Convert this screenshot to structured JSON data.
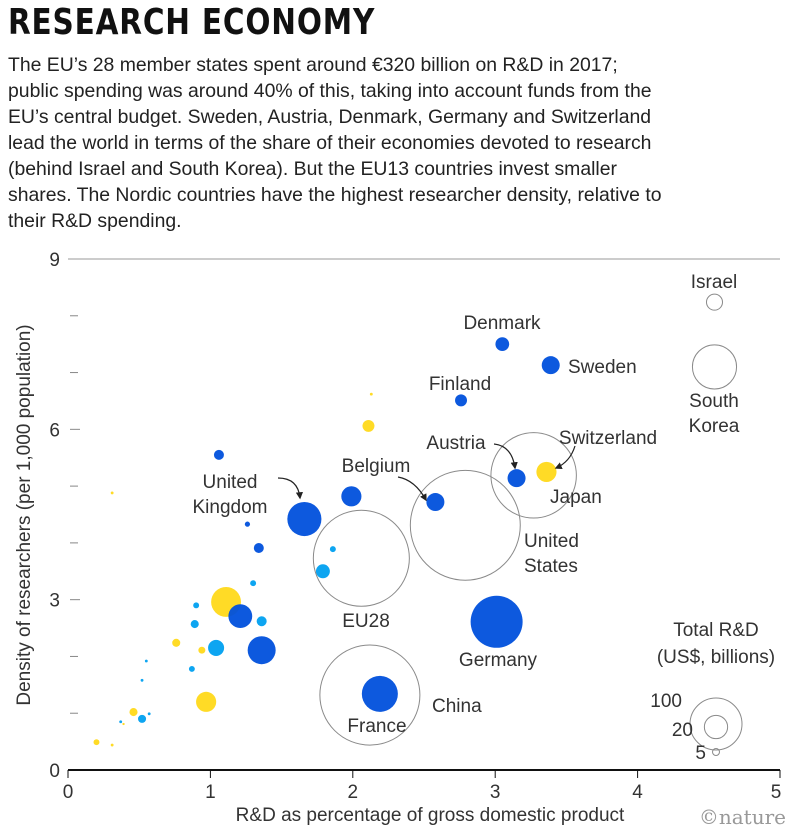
{
  "title": "RESEARCH ECONOMY",
  "intro_lines": [
    "The EU’s 28 member states spent around €320 billion on R&D in 2017;",
    "public spending was around 40% of this, taking into account funds from the",
    "EU’s central budget. Sweden, Austria, Denmark, Germany and Switzerland",
    "lead the world in terms of the share of their economies devoted to research",
    "(behind Israel and South Korea). But the EU13 countries invest smaller",
    "shares. The Nordic countries have the highest researcher density, relative to",
    "their R&D spending."
  ],
  "credit": "©nature",
  "colors": {
    "dark_blue": "#0050dc",
    "light_blue": "#00a0f0",
    "yellow": "#ffd91a",
    "hollow": "#8a8a8a"
  },
  "chart_data": {
    "type": "scatter",
    "xlabel": "R&D as percentage of gross domestic product",
    "ylabel": "Density of researchers (per 1,000 population)",
    "xlim": [
      0,
      5
    ],
    "ylim": [
      0,
      9
    ],
    "x_ticks": [
      "0",
      "1",
      "2",
      "3",
      "4",
      "5"
    ],
    "y_ticks": [
      "0",
      "3",
      "6",
      "9"
    ],
    "size_legend": {
      "title_lines": [
        "Total R&D",
        "(US$, billions)"
      ],
      "values": [
        100,
        20,
        5
      ],
      "labels": [
        "100",
        "20",
        "5"
      ]
    },
    "points": [
      {
        "label": [
          "Israel"
        ],
        "x": 4.54,
        "y": 8.24,
        "size": 9.5,
        "group": "hollow"
      },
      {
        "label": [
          "South",
          "Korea"
        ],
        "x": 4.54,
        "y": 7.1,
        "size": 72,
        "group": "hollow"
      },
      {
        "label": [
          "Denmark"
        ],
        "x": 3.05,
        "y": 7.5,
        "size": 7,
        "group": "dark_blue"
      },
      {
        "label": [
          "Sweden"
        ],
        "x": 3.39,
        "y": 7.13,
        "size": 12,
        "group": "dark_blue"
      },
      {
        "label": [
          "Finland"
        ],
        "x": 2.76,
        "y": 6.51,
        "size": 5.3,
        "group": "dark_blue"
      },
      {
        "label": [
          "Japan"
        ],
        "x": 3.27,
        "y": 5.19,
        "size": 270,
        "group": "hollow"
      },
      {
        "label": [
          "Austria"
        ],
        "x": 3.15,
        "y": 5.14,
        "size": 12,
        "group": "dark_blue"
      },
      {
        "label": [
          "Switzerland"
        ],
        "x": 3.36,
        "y": 5.25,
        "size": 15,
        "group": "yellow"
      },
      {
        "label": [
          "Belgium"
        ],
        "x": 2.58,
        "y": 4.72,
        "size": 12,
        "group": "dark_blue"
      },
      {
        "label": [
          "United",
          "States"
        ],
        "x": 2.79,
        "y": 4.31,
        "size": 447,
        "group": "hollow"
      },
      {
        "label": [
          "EU28"
        ],
        "x": 2.06,
        "y": 3.73,
        "size": 341,
        "group": "hollow"
      },
      {
        "label": [
          "Germany"
        ],
        "x": 3.01,
        "y": 2.61,
        "size": 100,
        "group": "dark_blue"
      },
      {
        "label": [
          "China"
        ],
        "x": 2.12,
        "y": 1.32,
        "size": 370,
        "group": "hollow"
      },
      {
        "label": [
          "France"
        ],
        "x": 2.19,
        "y": 1.34,
        "size": 48,
        "group": "dark_blue"
      },
      {
        "label": [
          "United",
          "Kingdom"
        ],
        "x": 1.66,
        "y": 4.42,
        "size": 43,
        "group": "dark_blue"
      },
      {
        "label": [],
        "x": 1.99,
        "y": 4.82,
        "size": 15,
        "group": "dark_blue"
      },
      {
        "label": [],
        "x": 1.06,
        "y": 5.55,
        "size": 3.7,
        "group": "dark_blue"
      },
      {
        "label": [],
        "x": 0.31,
        "y": 4.88,
        "size": 0.3,
        "group": "yellow"
      },
      {
        "label": [],
        "x": 1.26,
        "y": 4.33,
        "size": 1,
        "group": "dark_blue"
      },
      {
        "label": [],
        "x": 1.34,
        "y": 3.91,
        "size": 3.7,
        "group": "dark_blue"
      },
      {
        "label": [],
        "x": 1.3,
        "y": 3.29,
        "size": 1.3,
        "group": "light_blue"
      },
      {
        "label": [],
        "x": 1.11,
        "y": 2.96,
        "size": 33,
        "group": "yellow"
      },
      {
        "label": [],
        "x": 0.9,
        "y": 2.9,
        "size": 1.3,
        "group": "light_blue"
      },
      {
        "label": [],
        "x": 1.21,
        "y": 2.71,
        "size": 21,
        "group": "dark_blue"
      },
      {
        "label": [],
        "x": 0.89,
        "y": 2.57,
        "size": 2.4,
        "group": "light_blue"
      },
      {
        "label": [],
        "x": 1.36,
        "y": 2.62,
        "size": 3.7,
        "group": "light_blue"
      },
      {
        "label": [],
        "x": 0.76,
        "y": 2.24,
        "size": 2.4,
        "group": "yellow"
      },
      {
        "label": [],
        "x": 0.94,
        "y": 2.11,
        "size": 1.8,
        "group": "yellow"
      },
      {
        "label": [],
        "x": 1.04,
        "y": 2.15,
        "size": 9.5,
        "group": "light_blue"
      },
      {
        "label": [],
        "x": 1.36,
        "y": 2.11,
        "size": 29,
        "group": "dark_blue"
      },
      {
        "label": [],
        "x": 0.55,
        "y": 1.92,
        "size": 0.3,
        "group": "light_blue"
      },
      {
        "label": [],
        "x": 0.87,
        "y": 1.78,
        "size": 1.3,
        "group": "light_blue"
      },
      {
        "label": [],
        "x": 0.52,
        "y": 1.58,
        "size": 0.3,
        "group": "light_blue"
      },
      {
        "label": [],
        "x": 0.97,
        "y": 1.2,
        "size": 15,
        "group": "yellow"
      },
      {
        "label": [],
        "x": 0.57,
        "y": 0.99,
        "size": 0.3,
        "group": "light_blue"
      },
      {
        "label": [],
        "x": 0.46,
        "y": 1.02,
        "size": 2.4,
        "group": "yellow"
      },
      {
        "label": [],
        "x": 0.52,
        "y": 0.9,
        "size": 2.4,
        "group": "light_blue"
      },
      {
        "label": [],
        "x": 0.37,
        "y": 0.85,
        "size": 0.3,
        "group": "light_blue"
      },
      {
        "label": [],
        "x": 0.39,
        "y": 0.81,
        "size": 0.2,
        "group": "yellow"
      },
      {
        "label": [],
        "x": 0.2,
        "y": 0.49,
        "size": 1.3,
        "group": "yellow"
      },
      {
        "label": [],
        "x": 0.31,
        "y": 0.44,
        "size": 0.3,
        "group": "yellow"
      },
      {
        "label": [],
        "x": 2.13,
        "y": 6.62,
        "size": 0.3,
        "group": "yellow"
      },
      {
        "label": [],
        "x": 2.11,
        "y": 6.06,
        "size": 5.3,
        "group": "yellow"
      },
      {
        "label": [],
        "x": 1.86,
        "y": 3.89,
        "size": 1.3,
        "group": "light_blue"
      },
      {
        "label": [],
        "x": 1.79,
        "y": 3.5,
        "size": 7.2,
        "group": "light_blue"
      }
    ]
  }
}
